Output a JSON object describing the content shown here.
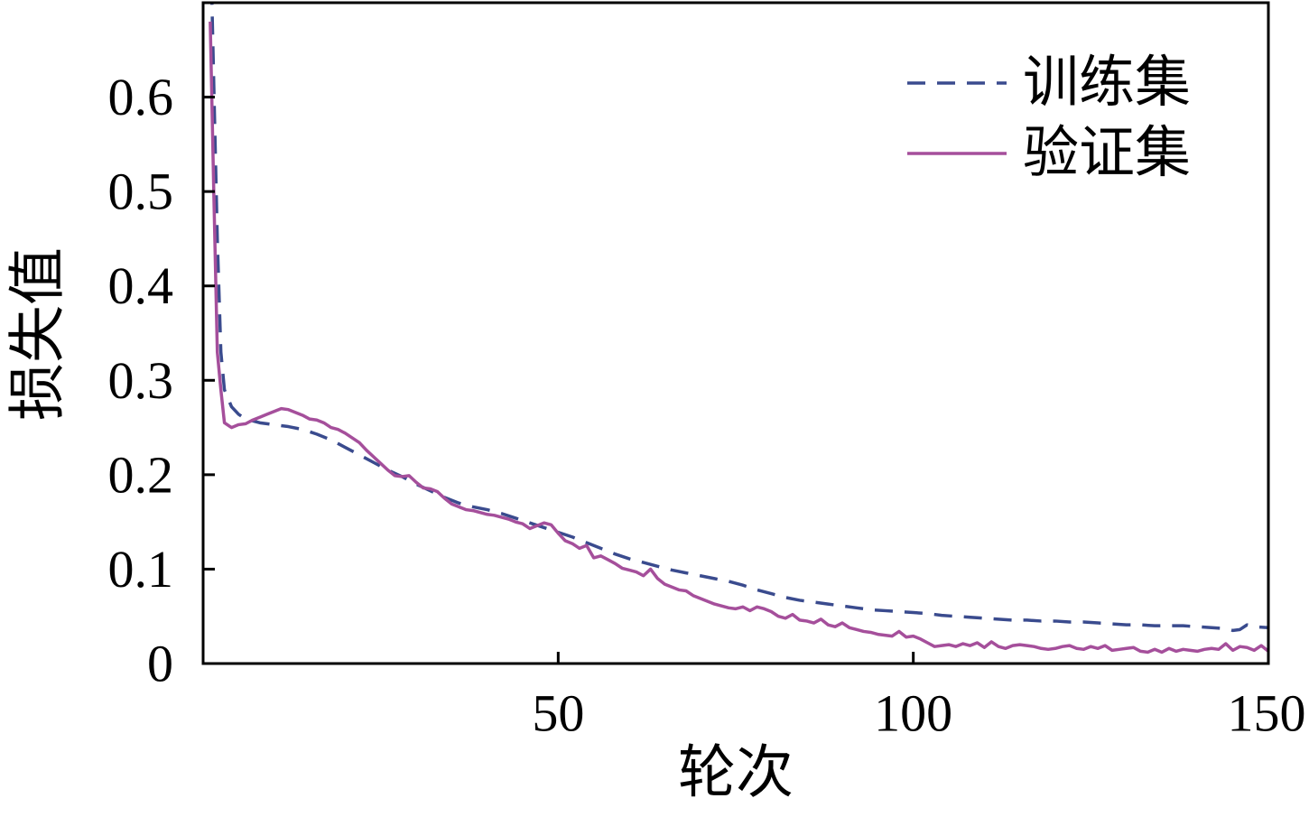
{
  "chart_data": {
    "type": "line",
    "xlabel": "轮次",
    "ylabel": "损失值",
    "xlim": [
      0,
      150
    ],
    "ylim": [
      0,
      0.7
    ],
    "xticks": [
      50,
      100,
      150
    ],
    "xtick_labels": [
      "50",
      "100",
      "150"
    ],
    "yticks": [
      0,
      0.1,
      0.2,
      0.3,
      0.4,
      0.5,
      0.6
    ],
    "ytick_labels": [
      "0",
      "0.1",
      "0.2",
      "0.3",
      "0.4",
      "0.5",
      "0.6"
    ],
    "grid": false,
    "legend": "top-right",
    "series": [
      {
        "name": "训练集",
        "line_style": "dashed",
        "color": "#3a4b8e",
        "x": [
          1,
          2,
          2.5,
          3,
          4,
          5,
          6,
          8,
          10,
          12,
          14,
          16,
          18,
          20,
          22,
          24,
          26,
          28,
          30,
          32,
          34,
          36,
          38,
          40,
          42,
          44,
          46,
          48,
          50,
          52,
          54,
          56,
          58,
          60,
          62,
          64,
          66,
          68,
          70,
          72,
          74,
          76,
          78,
          80,
          82,
          84,
          86,
          88,
          90,
          92,
          94,
          96,
          98,
          100,
          102,
          104,
          106,
          108,
          110,
          112,
          114,
          116,
          118,
          120,
          122,
          124,
          126,
          128,
          130,
          132,
          134,
          136,
          138,
          140,
          142,
          144,
          145,
          146,
          147,
          148,
          150
        ],
        "y": [
          0.78,
          0.45,
          0.33,
          0.29,
          0.272,
          0.264,
          0.259,
          0.255,
          0.253,
          0.251,
          0.248,
          0.243,
          0.237,
          0.229,
          0.221,
          0.213,
          0.205,
          0.198,
          0.19,
          0.183,
          0.176,
          0.17,
          0.166,
          0.163,
          0.159,
          0.154,
          0.149,
          0.144,
          0.139,
          0.134,
          0.128,
          0.122,
          0.116,
          0.111,
          0.107,
          0.103,
          0.099,
          0.096,
          0.093,
          0.09,
          0.087,
          0.083,
          0.078,
          0.074,
          0.07,
          0.067,
          0.065,
          0.063,
          0.061,
          0.059,
          0.057,
          0.056,
          0.055,
          0.054,
          0.053,
          0.051,
          0.05,
          0.049,
          0.048,
          0.047,
          0.046,
          0.046,
          0.045,
          0.045,
          0.044,
          0.044,
          0.043,
          0.042,
          0.041,
          0.041,
          0.04,
          0.04,
          0.04,
          0.039,
          0.038,
          0.037,
          0.035,
          0.036,
          0.041,
          0.039,
          0.038
        ]
      },
      {
        "name": "验证集",
        "line_style": "solid",
        "color": "#a54f9b",
        "x": [
          1,
          1.5,
          2,
          2.5,
          3,
          4,
          5,
          6,
          7,
          8,
          9,
          10,
          11,
          12,
          13,
          14,
          15,
          16,
          17,
          18,
          19,
          20,
          21,
          22,
          23,
          24,
          25,
          26,
          27,
          28,
          29,
          30,
          31,
          32,
          33,
          34,
          35,
          36,
          37,
          38,
          39,
          40,
          41,
          42,
          43,
          44,
          45,
          46,
          47,
          48,
          49,
          50,
          51,
          52,
          53,
          54,
          55,
          56,
          57,
          58,
          59,
          60,
          61,
          62,
          63,
          64,
          65,
          66,
          67,
          68,
          69,
          70,
          71,
          72,
          73,
          74,
          75,
          76,
          77,
          78,
          79,
          80,
          81,
          82,
          83,
          84,
          85,
          86,
          87,
          88,
          89,
          90,
          91,
          92,
          93,
          94,
          95,
          96,
          97,
          98,
          99,
          100,
          101,
          102,
          103,
          104,
          105,
          106,
          107,
          108,
          109,
          110,
          111,
          112,
          113,
          114,
          115,
          116,
          117,
          118,
          119,
          120,
          121,
          122,
          123,
          124,
          125,
          126,
          127,
          128,
          129,
          130,
          131,
          132,
          133,
          134,
          135,
          136,
          137,
          138,
          139,
          140,
          141,
          142,
          143,
          144,
          145,
          146,
          147,
          148,
          149,
          150
        ],
        "y": [
          0.68,
          0.5,
          0.33,
          0.29,
          0.255,
          0.25,
          0.253,
          0.254,
          0.258,
          0.261,
          0.264,
          0.267,
          0.27,
          0.269,
          0.266,
          0.263,
          0.259,
          0.258,
          0.255,
          0.25,
          0.248,
          0.244,
          0.239,
          0.234,
          0.226,
          0.219,
          0.212,
          0.205,
          0.199,
          0.198,
          0.199,
          0.192,
          0.186,
          0.185,
          0.182,
          0.175,
          0.169,
          0.166,
          0.163,
          0.162,
          0.16,
          0.158,
          0.157,
          0.155,
          0.153,
          0.15,
          0.148,
          0.143,
          0.146,
          0.149,
          0.147,
          0.138,
          0.13,
          0.127,
          0.122,
          0.125,
          0.112,
          0.114,
          0.11,
          0.106,
          0.101,
          0.099,
          0.097,
          0.093,
          0.1,
          0.09,
          0.084,
          0.081,
          0.078,
          0.077,
          0.072,
          0.069,
          0.066,
          0.063,
          0.061,
          0.059,
          0.058,
          0.06,
          0.056,
          0.06,
          0.058,
          0.055,
          0.05,
          0.048,
          0.052,
          0.046,
          0.045,
          0.043,
          0.047,
          0.041,
          0.039,
          0.043,
          0.038,
          0.036,
          0.034,
          0.033,
          0.031,
          0.03,
          0.029,
          0.034,
          0.028,
          0.029,
          0.026,
          0.022,
          0.018,
          0.019,
          0.02,
          0.018,
          0.021,
          0.019,
          0.022,
          0.017,
          0.023,
          0.018,
          0.016,
          0.019,
          0.02,
          0.019,
          0.018,
          0.016,
          0.015,
          0.016,
          0.018,
          0.019,
          0.016,
          0.015,
          0.018,
          0.016,
          0.019,
          0.014,
          0.015,
          0.016,
          0.017,
          0.013,
          0.012,
          0.015,
          0.012,
          0.016,
          0.013,
          0.015,
          0.014,
          0.013,
          0.015,
          0.016,
          0.015,
          0.021,
          0.014,
          0.018,
          0.017,
          0.014,
          0.019,
          0.013
        ]
      }
    ]
  }
}
